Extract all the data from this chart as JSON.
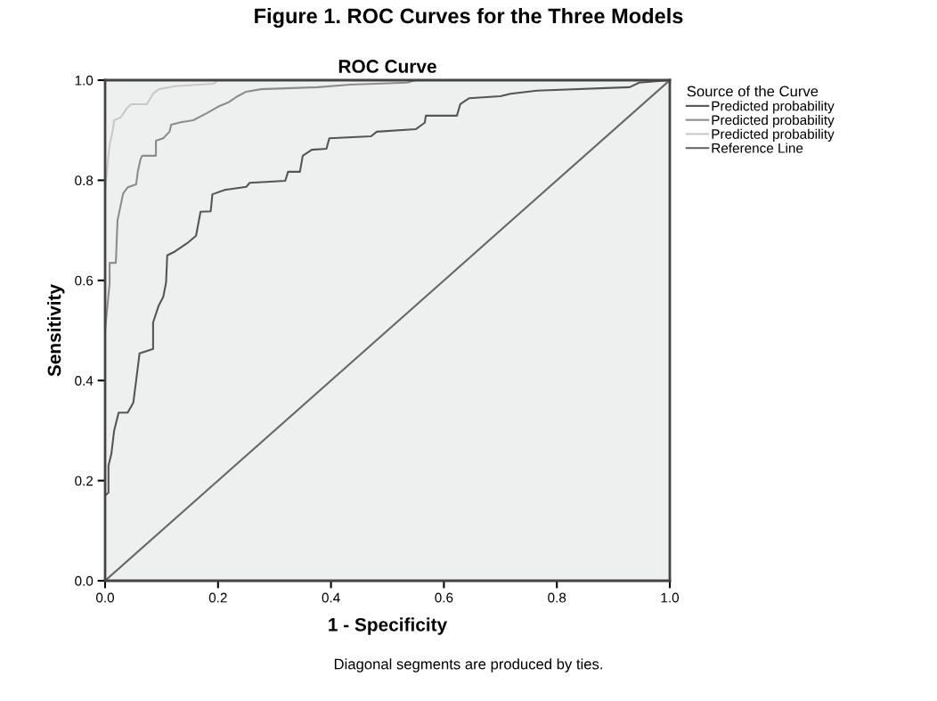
{
  "chart_data": {
    "type": "line",
    "title": "Figure 1. ROC Curves for the Three Models",
    "subtitle": "ROC Curve",
    "xlabel": "1 - Specificity",
    "ylabel": "Sensitivity",
    "legend_title": "Source of the Curve",
    "legend": "top right",
    "grid": false,
    "marker": "none",
    "line_style": "solid",
    "xlim": [
      0,
      1
    ],
    "ylim": [
      0,
      1
    ],
    "xticks": [
      {
        "value": 0,
        "label": "0.0"
      },
      {
        "value": 0.2,
        "label": "0.2"
      },
      {
        "value": 0.4,
        "label": "0.4"
      },
      {
        "value": 0.6,
        "label": "0.6"
      },
      {
        "value": 0.8,
        "label": "0.8"
      },
      {
        "value": 1,
        "label": "1.0"
      }
    ],
    "yticks": [
      {
        "value": 0,
        "label": "0.0"
      },
      {
        "value": 0.2,
        "label": "0.2"
      },
      {
        "value": 0.4,
        "label": "0.4"
      },
      {
        "value": 0.6,
        "label": "0.6"
      },
      {
        "value": 0.8,
        "label": "0.8"
      },
      {
        "value": 1,
        "label": "1.0"
      }
    ],
    "series": [
      {
        "name": "Predicted probability",
        "color": "#555555",
        "x": [
          0,
          0.006,
          0.006,
          0.011,
          0.016,
          0.024,
          0.04,
          0.05,
          0.055,
          0.061,
          0.085,
          0.085,
          0.095,
          0.103,
          0.108,
          0.11,
          0.124,
          0.145,
          0.161,
          0.169,
          0.187,
          0.19,
          0.213,
          0.25,
          0.256,
          0.319,
          0.324,
          0.345,
          0.35,
          0.366,
          0.392,
          0.397,
          0.471,
          0.481,
          0.55,
          0.566,
          0.568,
          0.623,
          0.629,
          0.645,
          0.7,
          0.718,
          0.765,
          0.929,
          0.946,
          1
        ],
        "values": [
          0.17,
          0.176,
          0.23,
          0.253,
          0.3,
          0.336,
          0.336,
          0.356,
          0.4,
          0.454,
          0.463,
          0.516,
          0.55,
          0.567,
          0.596,
          0.65,
          0.658,
          0.674,
          0.689,
          0.737,
          0.738,
          0.772,
          0.781,
          0.787,
          0.795,
          0.799,
          0.817,
          0.817,
          0.849,
          0.861,
          0.863,
          0.884,
          0.888,
          0.897,
          0.902,
          0.915,
          0.929,
          0.929,
          0.952,
          0.964,
          0.968,
          0.973,
          0.979,
          0.986,
          0.995,
          1
        ]
      },
      {
        "name": "Predicted probability",
        "color": "#8c8c8c",
        "x": [
          0,
          0.008,
          0.008,
          0.019,
          0.022,
          0.027,
          0.032,
          0.04,
          0.055,
          0.058,
          0.063,
          0.066,
          0.09,
          0.09,
          0.103,
          0.114,
          0.117,
          0.134,
          0.156,
          0.18,
          0.2,
          0.219,
          0.235,
          0.25,
          0.276,
          0.377,
          0.434,
          0.535,
          0.55,
          1
        ],
        "values": [
          0.5,
          0.594,
          0.635,
          0.635,
          0.72,
          0.747,
          0.774,
          0.786,
          0.792,
          0.818,
          0.843,
          0.849,
          0.849,
          0.879,
          0.884,
          0.897,
          0.911,
          0.916,
          0.92,
          0.934,
          0.947,
          0.956,
          0.968,
          0.977,
          0.982,
          0.986,
          0.991,
          0.995,
          1,
          1
        ]
      },
      {
        "name": "Predicted probability",
        "color": "#c8c8c8",
        "x": [
          0,
          0.006,
          0.008,
          0.014,
          0.016,
          0.027,
          0.038,
          0.046,
          0.074,
          0.085,
          0.095,
          0.124,
          0.192,
          0.2
        ],
        "values": [
          0.78,
          0.85,
          0.87,
          0.902,
          0.92,
          0.925,
          0.943,
          0.952,
          0.952,
          0.973,
          0.982,
          0.988,
          0.993,
          1
        ]
      },
      {
        "name": "Reference Line",
        "color": "#666666",
        "x": [
          0,
          1
        ],
        "values": [
          0,
          1
        ]
      }
    ],
    "annotations": [
      "Diagonal segments are produced by ties."
    ]
  }
}
